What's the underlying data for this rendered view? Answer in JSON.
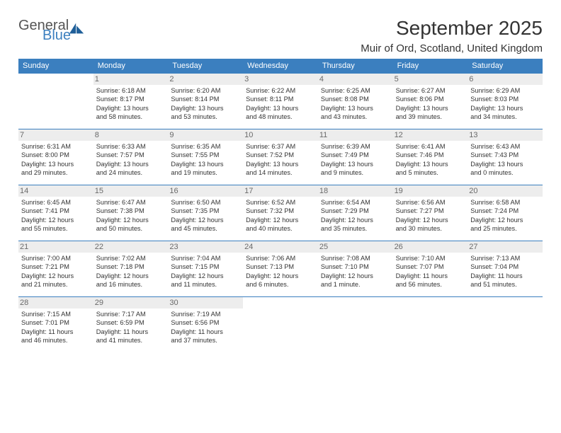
{
  "brand": {
    "text1": "General",
    "text2": "Blue"
  },
  "title": "September 2025",
  "subtitle": "Muir of Ord, Scotland, United Kingdom",
  "header_bg": "#3b7fbf",
  "day_headers": [
    "Sunday",
    "Monday",
    "Tuesday",
    "Wednesday",
    "Thursday",
    "Friday",
    "Saturday"
  ],
  "weeks": [
    [
      {
        "day": "",
        "sunrise": "",
        "sunset": "",
        "daylight1": "",
        "daylight2": "",
        "empty": true
      },
      {
        "day": "1",
        "sunrise": "Sunrise: 6:18 AM",
        "sunset": "Sunset: 8:17 PM",
        "daylight1": "Daylight: 13 hours",
        "daylight2": "and 58 minutes."
      },
      {
        "day": "2",
        "sunrise": "Sunrise: 6:20 AM",
        "sunset": "Sunset: 8:14 PM",
        "daylight1": "Daylight: 13 hours",
        "daylight2": "and 53 minutes."
      },
      {
        "day": "3",
        "sunrise": "Sunrise: 6:22 AM",
        "sunset": "Sunset: 8:11 PM",
        "daylight1": "Daylight: 13 hours",
        "daylight2": "and 48 minutes."
      },
      {
        "day": "4",
        "sunrise": "Sunrise: 6:25 AM",
        "sunset": "Sunset: 8:08 PM",
        "daylight1": "Daylight: 13 hours",
        "daylight2": "and 43 minutes."
      },
      {
        "day": "5",
        "sunrise": "Sunrise: 6:27 AM",
        "sunset": "Sunset: 8:06 PM",
        "daylight1": "Daylight: 13 hours",
        "daylight2": "and 39 minutes."
      },
      {
        "day": "6",
        "sunrise": "Sunrise: 6:29 AM",
        "sunset": "Sunset: 8:03 PM",
        "daylight1": "Daylight: 13 hours",
        "daylight2": "and 34 minutes."
      }
    ],
    [
      {
        "day": "7",
        "sunrise": "Sunrise: 6:31 AM",
        "sunset": "Sunset: 8:00 PM",
        "daylight1": "Daylight: 13 hours",
        "daylight2": "and 29 minutes."
      },
      {
        "day": "8",
        "sunrise": "Sunrise: 6:33 AM",
        "sunset": "Sunset: 7:57 PM",
        "daylight1": "Daylight: 13 hours",
        "daylight2": "and 24 minutes."
      },
      {
        "day": "9",
        "sunrise": "Sunrise: 6:35 AM",
        "sunset": "Sunset: 7:55 PM",
        "daylight1": "Daylight: 13 hours",
        "daylight2": "and 19 minutes."
      },
      {
        "day": "10",
        "sunrise": "Sunrise: 6:37 AM",
        "sunset": "Sunset: 7:52 PM",
        "daylight1": "Daylight: 13 hours",
        "daylight2": "and 14 minutes."
      },
      {
        "day": "11",
        "sunrise": "Sunrise: 6:39 AM",
        "sunset": "Sunset: 7:49 PM",
        "daylight1": "Daylight: 13 hours",
        "daylight2": "and 9 minutes."
      },
      {
        "day": "12",
        "sunrise": "Sunrise: 6:41 AM",
        "sunset": "Sunset: 7:46 PM",
        "daylight1": "Daylight: 13 hours",
        "daylight2": "and 5 minutes."
      },
      {
        "day": "13",
        "sunrise": "Sunrise: 6:43 AM",
        "sunset": "Sunset: 7:43 PM",
        "daylight1": "Daylight: 13 hours",
        "daylight2": "and 0 minutes."
      }
    ],
    [
      {
        "day": "14",
        "sunrise": "Sunrise: 6:45 AM",
        "sunset": "Sunset: 7:41 PM",
        "daylight1": "Daylight: 12 hours",
        "daylight2": "and 55 minutes."
      },
      {
        "day": "15",
        "sunrise": "Sunrise: 6:47 AM",
        "sunset": "Sunset: 7:38 PM",
        "daylight1": "Daylight: 12 hours",
        "daylight2": "and 50 minutes."
      },
      {
        "day": "16",
        "sunrise": "Sunrise: 6:50 AM",
        "sunset": "Sunset: 7:35 PM",
        "daylight1": "Daylight: 12 hours",
        "daylight2": "and 45 minutes."
      },
      {
        "day": "17",
        "sunrise": "Sunrise: 6:52 AM",
        "sunset": "Sunset: 7:32 PM",
        "daylight1": "Daylight: 12 hours",
        "daylight2": "and 40 minutes."
      },
      {
        "day": "18",
        "sunrise": "Sunrise: 6:54 AM",
        "sunset": "Sunset: 7:29 PM",
        "daylight1": "Daylight: 12 hours",
        "daylight2": "and 35 minutes."
      },
      {
        "day": "19",
        "sunrise": "Sunrise: 6:56 AM",
        "sunset": "Sunset: 7:27 PM",
        "daylight1": "Daylight: 12 hours",
        "daylight2": "and 30 minutes."
      },
      {
        "day": "20",
        "sunrise": "Sunrise: 6:58 AM",
        "sunset": "Sunset: 7:24 PM",
        "daylight1": "Daylight: 12 hours",
        "daylight2": "and 25 minutes."
      }
    ],
    [
      {
        "day": "21",
        "sunrise": "Sunrise: 7:00 AM",
        "sunset": "Sunset: 7:21 PM",
        "daylight1": "Daylight: 12 hours",
        "daylight2": "and 21 minutes."
      },
      {
        "day": "22",
        "sunrise": "Sunrise: 7:02 AM",
        "sunset": "Sunset: 7:18 PM",
        "daylight1": "Daylight: 12 hours",
        "daylight2": "and 16 minutes."
      },
      {
        "day": "23",
        "sunrise": "Sunrise: 7:04 AM",
        "sunset": "Sunset: 7:15 PM",
        "daylight1": "Daylight: 12 hours",
        "daylight2": "and 11 minutes."
      },
      {
        "day": "24",
        "sunrise": "Sunrise: 7:06 AM",
        "sunset": "Sunset: 7:13 PM",
        "daylight1": "Daylight: 12 hours",
        "daylight2": "and 6 minutes."
      },
      {
        "day": "25",
        "sunrise": "Sunrise: 7:08 AM",
        "sunset": "Sunset: 7:10 PM",
        "daylight1": "Daylight: 12 hours",
        "daylight2": "and 1 minute."
      },
      {
        "day": "26",
        "sunrise": "Sunrise: 7:10 AM",
        "sunset": "Sunset: 7:07 PM",
        "daylight1": "Daylight: 11 hours",
        "daylight2": "and 56 minutes."
      },
      {
        "day": "27",
        "sunrise": "Sunrise: 7:13 AM",
        "sunset": "Sunset: 7:04 PM",
        "daylight1": "Daylight: 11 hours",
        "daylight2": "and 51 minutes."
      }
    ],
    [
      {
        "day": "28",
        "sunrise": "Sunrise: 7:15 AM",
        "sunset": "Sunset: 7:01 PM",
        "daylight1": "Daylight: 11 hours",
        "daylight2": "and 46 minutes."
      },
      {
        "day": "29",
        "sunrise": "Sunrise: 7:17 AM",
        "sunset": "Sunset: 6:59 PM",
        "daylight1": "Daylight: 11 hours",
        "daylight2": "and 41 minutes."
      },
      {
        "day": "30",
        "sunrise": "Sunrise: 7:19 AM",
        "sunset": "Sunset: 6:56 PM",
        "daylight1": "Daylight: 11 hours",
        "daylight2": "and 37 minutes."
      },
      {
        "day": "",
        "sunrise": "",
        "sunset": "",
        "daylight1": "",
        "daylight2": "",
        "empty": true
      },
      {
        "day": "",
        "sunrise": "",
        "sunset": "",
        "daylight1": "",
        "daylight2": "",
        "empty": true
      },
      {
        "day": "",
        "sunrise": "",
        "sunset": "",
        "daylight1": "",
        "daylight2": "",
        "empty": true
      },
      {
        "day": "",
        "sunrise": "",
        "sunset": "",
        "daylight1": "",
        "daylight2": "",
        "empty": true
      }
    ]
  ]
}
